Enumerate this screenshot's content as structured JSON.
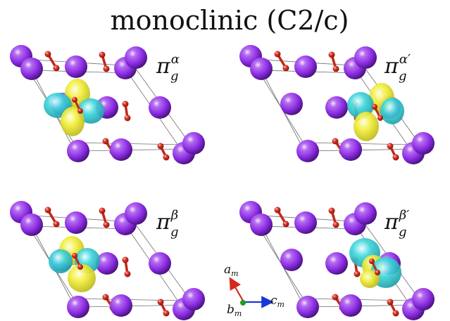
{
  "title": "monoclinic (C2/c)",
  "panels": [
    {
      "id": "pi-g-alpha",
      "symbol": "π",
      "sub": "g",
      "sup": "α",
      "lobe_layout": "vertical-yellow"
    },
    {
      "id": "pi-g-alpha-prime",
      "symbol": "π",
      "sub": "g",
      "sup": "α′",
      "lobe_layout": "vertical-yellow-shifted"
    },
    {
      "id": "pi-g-beta",
      "symbol": "π",
      "sub": "g",
      "sup": "β",
      "lobe_layout": "vertical-yellow-tilted"
    },
    {
      "id": "pi-g-beta-prime",
      "symbol": "π",
      "sub": "g",
      "sup": "β′",
      "lobe_layout": "vertical-cyan"
    }
  ],
  "axes": {
    "a": {
      "base": "a",
      "sub": "m"
    },
    "b": {
      "base": "b",
      "sub": "m"
    },
    "c": {
      "base": "c",
      "sub": "m"
    }
  },
  "colors": {
    "metal_atom": "#8a2be2",
    "oxygen_atom": "#d42a1e",
    "isosurface_positive": "#f2ee3a",
    "isosurface_negative": "#3fd6dc",
    "a_axis": "#d42a1e",
    "b_axis": "#1aa01a",
    "c_axis": "#1838d8"
  }
}
